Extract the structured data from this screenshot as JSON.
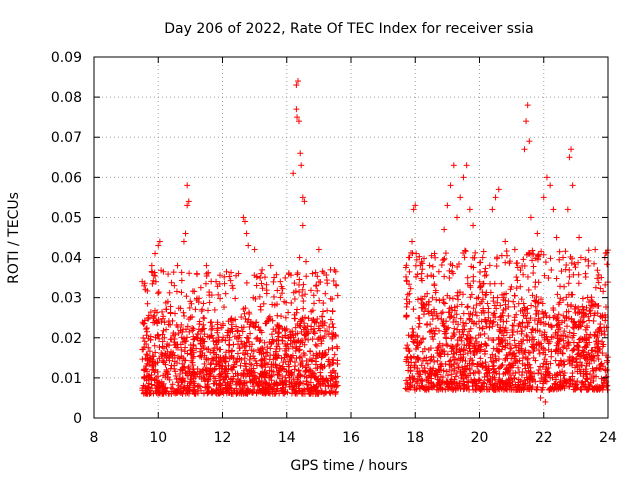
{
  "chart_data": {
    "type": "scatter",
    "title": "Day 206 of 2022, Rate Of TEC Index for receiver ssia",
    "xlabel": "GPS time / hours",
    "ylabel": "ROTI / TECUs",
    "xlim": [
      8,
      24
    ],
    "ylim": [
      0,
      0.09
    ],
    "x_ticks": [
      "8",
      "10",
      "12",
      "14",
      "16",
      "18",
      "20",
      "22",
      "24"
    ],
    "y_ticks": [
      "0",
      "0.01",
      "0.02",
      "0.03",
      "0.04",
      "0.05",
      "0.06",
      "0.07",
      "0.08",
      "0.09"
    ],
    "grid": true,
    "marker": "plus",
    "color": "#ff0000",
    "data_segments": [
      {
        "x_start": 9.5,
        "x_end": 15.6,
        "typical_range": [
          0.006,
          0.025
        ]
      },
      {
        "x_start": 17.7,
        "x_end": 24.0,
        "typical_range": [
          0.007,
          0.03
        ]
      }
    ],
    "outliers": [
      {
        "x": 9.5,
        "y": 0.034
      },
      {
        "x": 9.6,
        "y": 0.032
      },
      {
        "x": 9.8,
        "y": 0.038
      },
      {
        "x": 9.9,
        "y": 0.041
      },
      {
        "x": 10.0,
        "y": 0.043
      },
      {
        "x": 10.05,
        "y": 0.044
      },
      {
        "x": 10.3,
        "y": 0.029
      },
      {
        "x": 10.5,
        "y": 0.033
      },
      {
        "x": 10.6,
        "y": 0.038
      },
      {
        "x": 10.8,
        "y": 0.044
      },
      {
        "x": 10.85,
        "y": 0.046
      },
      {
        "x": 10.9,
        "y": 0.053
      },
      {
        "x": 10.95,
        "y": 0.054
      },
      {
        "x": 10.9,
        "y": 0.058
      },
      {
        "x": 11.2,
        "y": 0.036
      },
      {
        "x": 11.5,
        "y": 0.038
      },
      {
        "x": 11.8,
        "y": 0.034
      },
      {
        "x": 12.1,
        "y": 0.031
      },
      {
        "x": 12.3,
        "y": 0.033
      },
      {
        "x": 12.5,
        "y": 0.036
      },
      {
        "x": 12.65,
        "y": 0.05
      },
      {
        "x": 12.7,
        "y": 0.049
      },
      {
        "x": 12.75,
        "y": 0.046
      },
      {
        "x": 12.8,
        "y": 0.043
      },
      {
        "x": 13.0,
        "y": 0.042
      },
      {
        "x": 13.2,
        "y": 0.036
      },
      {
        "x": 13.5,
        "y": 0.038
      },
      {
        "x": 13.8,
        "y": 0.034
      },
      {
        "x": 14.2,
        "y": 0.061
      },
      {
        "x": 14.3,
        "y": 0.077
      },
      {
        "x": 14.3,
        "y": 0.083
      },
      {
        "x": 14.35,
        "y": 0.084
      },
      {
        "x": 14.32,
        "y": 0.075
      },
      {
        "x": 14.38,
        "y": 0.074
      },
      {
        "x": 14.42,
        "y": 0.066
      },
      {
        "x": 14.45,
        "y": 0.063
      },
      {
        "x": 14.5,
        "y": 0.055
      },
      {
        "x": 14.55,
        "y": 0.054
      },
      {
        "x": 14.5,
        "y": 0.048
      },
      {
        "x": 14.4,
        "y": 0.04
      },
      {
        "x": 14.6,
        "y": 0.039
      },
      {
        "x": 14.8,
        "y": 0.036
      },
      {
        "x": 15.0,
        "y": 0.042
      },
      {
        "x": 15.2,
        "y": 0.031
      },
      {
        "x": 17.8,
        "y": 0.04
      },
      {
        "x": 17.9,
        "y": 0.044
      },
      {
        "x": 17.95,
        "y": 0.052
      },
      {
        "x": 18.0,
        "y": 0.053
      },
      {
        "x": 18.2,
        "y": 0.036
      },
      {
        "x": 18.6,
        "y": 0.041
      },
      {
        "x": 18.9,
        "y": 0.047
      },
      {
        "x": 19.0,
        "y": 0.053
      },
      {
        "x": 19.1,
        "y": 0.058
      },
      {
        "x": 19.2,
        "y": 0.063
      },
      {
        "x": 19.3,
        "y": 0.05
      },
      {
        "x": 19.4,
        "y": 0.055
      },
      {
        "x": 19.5,
        "y": 0.06
      },
      {
        "x": 19.6,
        "y": 0.063
      },
      {
        "x": 19.7,
        "y": 0.052
      },
      {
        "x": 19.8,
        "y": 0.048
      },
      {
        "x": 20.1,
        "y": 0.04
      },
      {
        "x": 20.4,
        "y": 0.052
      },
      {
        "x": 20.5,
        "y": 0.055
      },
      {
        "x": 20.6,
        "y": 0.057
      },
      {
        "x": 20.8,
        "y": 0.044
      },
      {
        "x": 21.1,
        "y": 0.042
      },
      {
        "x": 21.4,
        "y": 0.067
      },
      {
        "x": 21.45,
        "y": 0.074
      },
      {
        "x": 21.5,
        "y": 0.078
      },
      {
        "x": 21.55,
        "y": 0.069
      },
      {
        "x": 21.6,
        "y": 0.05
      },
      {
        "x": 21.8,
        "y": 0.046
      },
      {
        "x": 22.0,
        "y": 0.055
      },
      {
        "x": 22.1,
        "y": 0.06
      },
      {
        "x": 22.2,
        "y": 0.058
      },
      {
        "x": 22.3,
        "y": 0.052
      },
      {
        "x": 22.4,
        "y": 0.045
      },
      {
        "x": 22.6,
        "y": 0.04
      },
      {
        "x": 22.75,
        "y": 0.052
      },
      {
        "x": 22.8,
        "y": 0.065
      },
      {
        "x": 22.85,
        "y": 0.067
      },
      {
        "x": 22.9,
        "y": 0.058
      },
      {
        "x": 23.1,
        "y": 0.045
      },
      {
        "x": 23.3,
        "y": 0.036
      },
      {
        "x": 23.6,
        "y": 0.042
      },
      {
        "x": 23.9,
        "y": 0.04
      },
      {
        "x": 22.05,
        "y": 0.004
      },
      {
        "x": 21.9,
        "y": 0.005
      }
    ]
  }
}
